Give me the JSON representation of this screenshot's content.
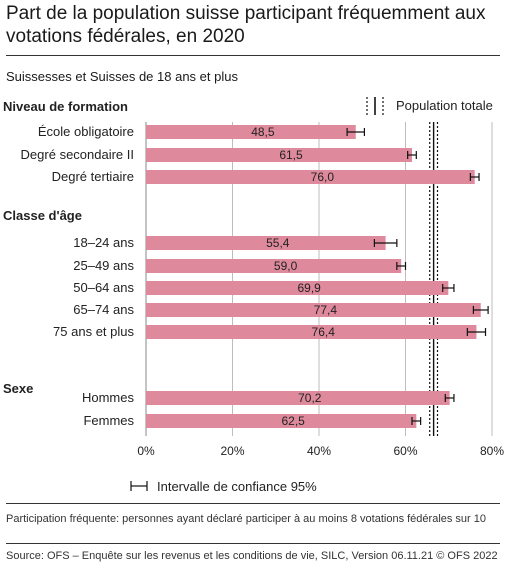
{
  "title": "Part de la population suisse participant fréquemment aux votations fédérales, en 2020",
  "subtitle": "Suissesses et Suisses de 18 ans et plus",
  "note": "Participation fréquente: personnes ayant déclaré participer à au moins 8 votations fédérales sur 10",
  "source": "Source: OFS – Enquête sur les revenus et les conditions de vie,  SILC, Version 06.11.21   © OFS 2022",
  "colors": {
    "bar": "#de8a9c",
    "grid": "#bdbdbd",
    "text": "#333333"
  },
  "chart_data": {
    "type": "bar",
    "orientation": "horizontal",
    "xlim": [
      0,
      80
    ],
    "xticks": [
      "0%",
      "20%",
      "40%",
      "60%",
      "80%"
    ],
    "tick_values": [
      0,
      20,
      40,
      60,
      80
    ],
    "reference_line": {
      "label": "Population totale",
      "value": 66.5,
      "ci": [
        65.6,
        67.4
      ]
    },
    "ci_legend": "Intervalle de confiance 95%",
    "groups": [
      {
        "name": "Niveau de formation",
        "items": [
          {
            "label": "École obligatoire",
            "value": 48.5,
            "display": "48,5",
            "ci": [
              46.5,
              50.5
            ]
          },
          {
            "label": "Degré secondaire II",
            "value": 61.5,
            "display": "61,5",
            "ci": [
              60.5,
              62.5
            ]
          },
          {
            "label": "Degré tertiaire",
            "value": 76.0,
            "display": "76,0",
            "ci": [
              75.0,
              77.0
            ]
          }
        ]
      },
      {
        "name": "Classe d'âge",
        "items": [
          {
            "label": "18–24 ans",
            "value": 55.4,
            "display": "55,4",
            "ci": [
              52.8,
              58.0
            ]
          },
          {
            "label": "25–49 ans",
            "value": 59.0,
            "display": "59,0",
            "ci": [
              58.0,
              60.0
            ]
          },
          {
            "label": "50–64 ans",
            "value": 69.9,
            "display": "69,9",
            "ci": [
              68.6,
              71.2
            ]
          },
          {
            "label": "65–74 ans",
            "value": 77.4,
            "display": "77,4",
            "ci": [
              75.7,
              79.1
            ]
          },
          {
            "label": "75 ans et plus",
            "value": 76.4,
            "display": "76,4",
            "ci": [
              74.3,
              78.5
            ]
          }
        ]
      },
      {
        "name": "Sexe",
        "items": [
          {
            "label": "Hommes",
            "value": 70.2,
            "display": "70,2",
            "ci": [
              69.2,
              71.2
            ]
          },
          {
            "label": "Femmes",
            "value": 62.5,
            "display": "62,5",
            "ci": [
              61.5,
              63.5
            ]
          }
        ]
      }
    ]
  }
}
